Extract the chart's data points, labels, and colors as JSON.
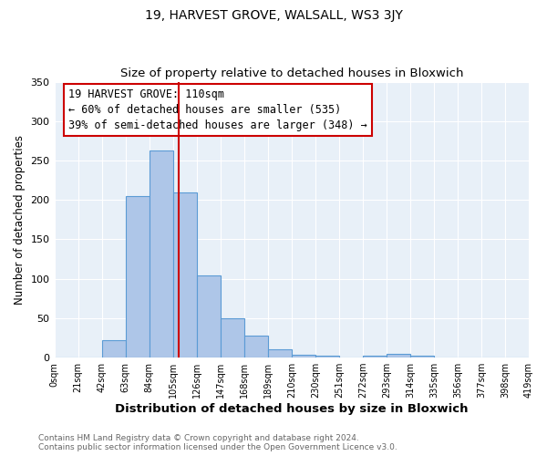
{
  "title": "19, HARVEST GROVE, WALSALL, WS3 3JY",
  "subtitle": "Size of property relative to detached houses in Bloxwich",
  "xlabel": "Distribution of detached houses by size in Bloxwich",
  "ylabel": "Number of detached properties",
  "heights": [
    0,
    0,
    22,
    205,
    263,
    210,
    104,
    50,
    28,
    10,
    4,
    2,
    0,
    2,
    5,
    2,
    0,
    0,
    0,
    0
  ],
  "bin_width": 21,
  "tick_labels": [
    "0sqm",
    "21sqm",
    "42sqm",
    "63sqm",
    "84sqm",
    "105sqm",
    "126sqm",
    "147sqm",
    "168sqm",
    "189sqm",
    "210sqm",
    "230sqm",
    "251sqm",
    "272sqm",
    "293sqm",
    "314sqm",
    "335sqm",
    "356sqm",
    "377sqm",
    "398sqm",
    "419sqm"
  ],
  "bar_color": "#aec6e8",
  "bar_edge_color": "#5b9bd5",
  "vline_x": 110,
  "vline_color": "#cc0000",
  "annotation_title": "19 HARVEST GROVE: 110sqm",
  "annotation_line1": "← 60% of detached houses are smaller (535)",
  "annotation_line2": "39% of semi-detached houses are larger (348) →",
  "annotation_box_color": "#cc0000",
  "ylim": [
    0,
    350
  ],
  "yticks": [
    0,
    50,
    100,
    150,
    200,
    250,
    300,
    350
  ],
  "xlim": [
    0,
    420
  ],
  "bg_color": "#e8f0f8",
  "footer1": "Contains HM Land Registry data © Crown copyright and database right 2024.",
  "footer2": "Contains public sector information licensed under the Open Government Licence v3.0.",
  "title_fontsize": 10,
  "subtitle_fontsize": 9.5,
  "xlabel_fontsize": 9.5,
  "ylabel_fontsize": 8.5,
  "tick_fontsize": 7,
  "annotation_fontsize": 8.5,
  "footer_fontsize": 6.5
}
